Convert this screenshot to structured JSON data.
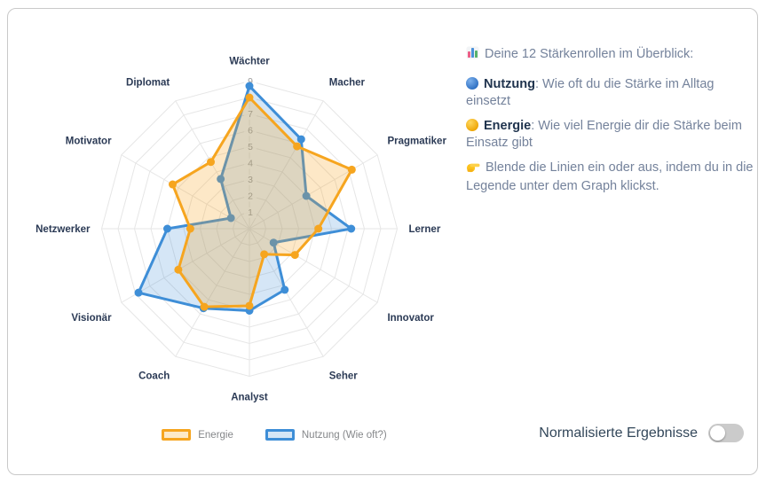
{
  "chart_data": {
    "type": "radar",
    "categories": [
      "Wächter",
      "Macher",
      "Pragmatiker",
      "Lerner",
      "Innovator",
      "Seher",
      "Analyst",
      "Coach",
      "Visionär",
      "Netzwerker",
      "Motivator",
      "Diplomat"
    ],
    "series": [
      {
        "name": "Energie",
        "color": "#F6A51F",
        "fill_opacity": 0.25,
        "values": [
          8.0,
          5.8,
          7.2,
          4.2,
          3.2,
          1.8,
          4.7,
          5.5,
          5.0,
          3.6,
          5.4,
          4.7
        ]
      },
      {
        "name": "Nutzung (Wie oft?)",
        "color": "#3E8ED7",
        "fill_opacity": 0.22,
        "values": [
          8.7,
          6.3,
          4.0,
          6.2,
          1.7,
          4.3,
          5.0,
          5.6,
          7.8,
          5.0,
          1.3,
          3.5
        ]
      }
    ],
    "ticks": [
      1,
      2,
      3,
      4,
      5,
      6,
      7,
      8,
      9
    ],
    "rmin": 0,
    "rmax": 9,
    "grid": true,
    "grid_color": "#e6e6e6",
    "tick_color": "#9b9b9b",
    "axis_label_color": "#2b3a55",
    "legend_position": "bottom"
  },
  "info_panel": {
    "heading": {
      "icon": "bar-chart-icon",
      "text": "Deine 12 Stärkenrollen im Überblick:"
    },
    "bullets": [
      {
        "icon": "blue-circle-icon",
        "term": "Nutzung",
        "text": ": Wie oft du die Stärke im Alltag einsetzt"
      },
      {
        "icon": "yellow-circle-icon",
        "term": "Energie",
        "text": ": Wie viel Energie dir die Stärke beim Einsatz gibt"
      },
      {
        "icon": "pointing-hand-icon",
        "term": "",
        "text": "Blende die Linien ein oder aus, indem du in die Legende unter dem Graph klickst."
      }
    ]
  },
  "footer": {
    "toggle_label": "Normalisierte Ergebnisse",
    "toggle_state": "off"
  }
}
